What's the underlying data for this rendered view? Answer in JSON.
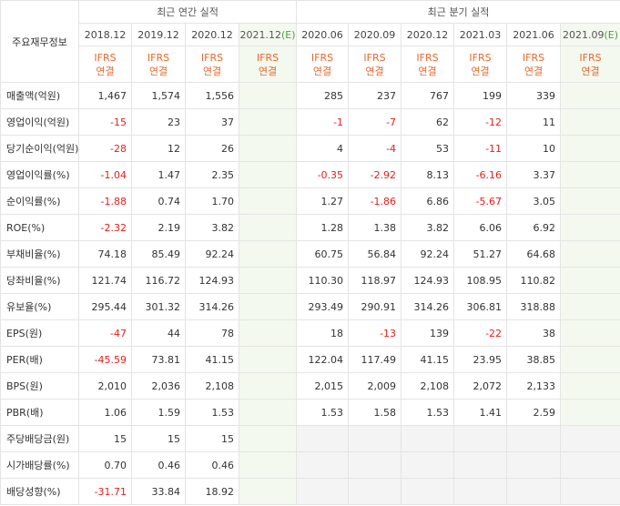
{
  "table": {
    "corner_label": "주요재무정보",
    "group_annual": "최근 연간 실적",
    "group_quarter": "최근 분기 실적",
    "annual_periods": [
      "2018.12",
      "2019.12",
      "2020.12",
      "2021.12"
    ],
    "estimate_marker": "(E)",
    "quarter_periods": [
      "2020.06",
      "2020.09",
      "2020.12",
      "2021.03",
      "2021.06",
      "2021.09"
    ],
    "ifrs_line1": "IFRS",
    "ifrs_line2": "연결",
    "rows": [
      {
        "label": "매출액(억원)",
        "annual": [
          "1,467",
          "1,574",
          "1,556",
          ""
        ],
        "quarter": [
          "285",
          "237",
          "767",
          "199",
          "339",
          ""
        ]
      },
      {
        "label": "영업이익(억원)",
        "annual": [
          "-15",
          "23",
          "37",
          ""
        ],
        "quarter": [
          "-1",
          "-7",
          "62",
          "-12",
          "11",
          ""
        ]
      },
      {
        "label": "당기순이익(억원)",
        "annual": [
          "-28",
          "12",
          "26",
          ""
        ],
        "quarter": [
          "4",
          "-4",
          "53",
          "-11",
          "10",
          ""
        ]
      },
      {
        "label": "영업이익률(%)",
        "annual": [
          "-1.04",
          "1.47",
          "2.35",
          ""
        ],
        "quarter": [
          "-0.35",
          "-2.92",
          "8.13",
          "-6.16",
          "3.37",
          ""
        ]
      },
      {
        "label": "순이익률(%)",
        "annual": [
          "-1.88",
          "0.74",
          "1.70",
          ""
        ],
        "quarter": [
          "1.27",
          "-1.86",
          "6.86",
          "-5.67",
          "3.05",
          ""
        ]
      },
      {
        "label": "ROE(%)",
        "annual": [
          "-2.32",
          "2.19",
          "3.82",
          ""
        ],
        "quarter": [
          "1.28",
          "1.38",
          "3.82",
          "6.06",
          "6.92",
          ""
        ]
      },
      {
        "label": "부채비율(%)",
        "annual": [
          "74.18",
          "85.49",
          "92.24",
          ""
        ],
        "quarter": [
          "60.75",
          "56.84",
          "92.24",
          "51.27",
          "64.68",
          ""
        ]
      },
      {
        "label": "당좌비율(%)",
        "annual": [
          "121.74",
          "116.72",
          "124.93",
          ""
        ],
        "quarter": [
          "110.30",
          "118.97",
          "124.93",
          "108.95",
          "110.82",
          ""
        ]
      },
      {
        "label": "유보율(%)",
        "annual": [
          "295.44",
          "301.32",
          "314.26",
          ""
        ],
        "quarter": [
          "293.49",
          "290.91",
          "314.26",
          "306.81",
          "318.88",
          ""
        ]
      },
      {
        "label": "EPS(원)",
        "annual": [
          "-47",
          "44",
          "78",
          ""
        ],
        "quarter": [
          "18",
          "-13",
          "139",
          "-22",
          "38",
          ""
        ]
      },
      {
        "label": "PER(배)",
        "annual": [
          "-45.59",
          "73.81",
          "41.15",
          ""
        ],
        "quarter": [
          "122.04",
          "117.49",
          "41.15",
          "23.95",
          "38.85",
          ""
        ]
      },
      {
        "label": "BPS(원)",
        "annual": [
          "2,010",
          "2,036",
          "2,108",
          ""
        ],
        "quarter": [
          "2,015",
          "2,009",
          "2,108",
          "2,072",
          "2,133",
          ""
        ]
      },
      {
        "label": "PBR(배)",
        "annual": [
          "1.06",
          "1.59",
          "1.53",
          ""
        ],
        "quarter": [
          "1.53",
          "1.58",
          "1.53",
          "1.41",
          "2.59",
          ""
        ]
      },
      {
        "label": "주당배당금(원)",
        "annual": [
          "15",
          "15",
          "15",
          ""
        ],
        "quarter": [
          "",
          "",
          "",
          "",
          "",
          ""
        ]
      },
      {
        "label": "시가배당률(%)",
        "annual": [
          "0.70",
          "0.46",
          "0.46",
          ""
        ],
        "quarter": [
          "",
          "",
          "",
          "",
          "",
          ""
        ]
      },
      {
        "label": "배당성향(%)",
        "annual": [
          "-31.71",
          "33.84",
          "18.92",
          ""
        ],
        "quarter": [
          "",
          "",
          "",
          "",
          "",
          ""
        ]
      }
    ]
  },
  "colors": {
    "negative": "#e4201c",
    "ifrs_accent": "#e4692d",
    "estimate_marker": "#4aa33a",
    "estimate_bg": "#f4f9f0"
  }
}
